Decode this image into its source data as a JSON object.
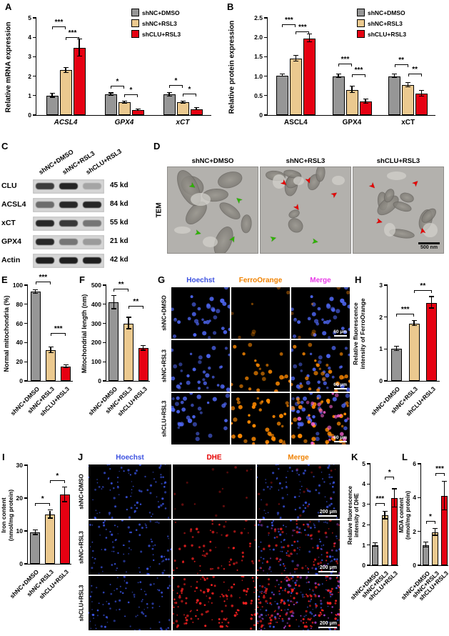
{
  "labels": {
    "A": "A",
    "B": "B",
    "C": "C",
    "D": "D",
    "E": "E",
    "F": "F",
    "G": "G",
    "H": "H",
    "I": "I",
    "J": "J",
    "K": "K",
    "L": "L"
  },
  "figure": {
    "groups": [
      "shNC+DMSO",
      "shNC+RSL3",
      "shCLU+RSL3"
    ],
    "group_colors": [
      "#969696",
      "#ebc98f",
      "#e60012"
    ]
  },
  "chart_data": [
    {
      "panel": "A",
      "type": "bar",
      "ylabel": "Relative mRNA expression",
      "ymax": 5,
      "yticks": [
        0,
        1,
        2,
        3,
        4,
        5
      ],
      "categories": [
        "ACSL4",
        "GPX4",
        "xCT"
      ],
      "italic_x": true,
      "legend": true,
      "series": [
        {
          "name": "shNC+DMSO",
          "values": [
            1.0,
            1.05,
            1.05
          ],
          "errors": [
            0.1,
            0.07,
            0.1
          ]
        },
        {
          "name": "shNC+RSL3",
          "values": [
            2.3,
            0.65,
            0.65
          ],
          "errors": [
            0.12,
            0.05,
            0.05
          ]
        },
        {
          "name": "shCLU+RSL3",
          "values": [
            3.45,
            0.25,
            0.3
          ],
          "errors": [
            0.45,
            0.04,
            0.05
          ]
        }
      ],
      "brackets": [
        {
          "cat": 0,
          "a": 0,
          "b": 1,
          "label": "***",
          "y": 4.55
        },
        {
          "cat": 0,
          "a": 1,
          "b": 2,
          "label": "***",
          "y": 4.0
        },
        {
          "cat": 1,
          "a": 0,
          "b": 1,
          "label": "*",
          "y": 1.5
        },
        {
          "cat": 1,
          "a": 1,
          "b": 2,
          "label": "*",
          "y": 1.05
        },
        {
          "cat": 2,
          "a": 0,
          "b": 1,
          "label": "*",
          "y": 1.55
        },
        {
          "cat": 2,
          "a": 1,
          "b": 2,
          "label": "*",
          "y": 1.1
        }
      ]
    },
    {
      "panel": "B",
      "type": "bar",
      "ylabel": "Relative protein expression",
      "ymax": 2.5,
      "yticks": [
        0,
        0.5,
        1.0,
        1.5,
        2.0,
        2.5
      ],
      "ytick_labels": [
        "0",
        "0.5",
        "1.0",
        "1.5",
        "2.0",
        "2.5"
      ],
      "categories": [
        "ASCL4",
        "GPX4",
        "xCT"
      ],
      "italic_x": false,
      "legend": true,
      "series": [
        {
          "name": "shNC+DMSO",
          "values": [
            1.02,
            1.0,
            1.0
          ],
          "errors": [
            0.03,
            0.04,
            0.05
          ]
        },
        {
          "name": "shNC+RSL3",
          "values": [
            1.45,
            0.65,
            0.77
          ],
          "errors": [
            0.08,
            0.08,
            0.06
          ]
        },
        {
          "name": "shCLU+RSL3",
          "values": [
            1.97,
            0.35,
            0.55
          ],
          "errors": [
            0.1,
            0.05,
            0.08
          ]
        }
      ],
      "brackets": [
        {
          "cat": 0,
          "a": 0,
          "b": 1,
          "label": "***",
          "y": 2.33
        },
        {
          "cat": 0,
          "a": 1,
          "b": 2,
          "label": "***",
          "y": 2.15
        },
        {
          "cat": 1,
          "a": 0,
          "b": 1,
          "label": "***",
          "y": 1.32
        },
        {
          "cat": 1,
          "a": 1,
          "b": 2,
          "label": "***",
          "y": 1.05
        },
        {
          "cat": 2,
          "a": 0,
          "b": 1,
          "label": "**",
          "y": 1.3
        },
        {
          "cat": 2,
          "a": 1,
          "b": 2,
          "label": "**",
          "y": 1.07
        }
      ]
    },
    {
      "panel": "E",
      "type": "bar",
      "ylabel": "Normal mitochondria (%)",
      "ymax": 100,
      "yticks": [
        0,
        20,
        40,
        60,
        80,
        100
      ],
      "rotate_x": true,
      "categories": [
        "shNC+DMSO",
        "shNC+RSL3",
        "shCLU+RSL3"
      ],
      "values": [
        93,
        32,
        15
      ],
      "errors": [
        2,
        3,
        1.5
      ],
      "brackets": [
        {
          "a": 0,
          "b": 1,
          "label": "***",
          "y": 104
        },
        {
          "a": 1,
          "b": 2,
          "label": "***",
          "y": 50
        }
      ]
    },
    {
      "panel": "F",
      "type": "bar",
      "ylabel": "Mitochondrial length (nm)",
      "ymax": 500,
      "yticks": [
        0,
        100,
        200,
        300,
        400,
        500
      ],
      "rotate_x": true,
      "categories": [
        "shNC+DMSO",
        "shNC+RSL3",
        "shCLU+RSL3"
      ],
      "values": [
        410,
        300,
        170
      ],
      "errors": [
        35,
        30,
        12
      ],
      "brackets": [
        {
          "a": 0,
          "b": 1,
          "label": "**",
          "y": 483
        },
        {
          "a": 1,
          "b": 2,
          "label": "**",
          "y": 390
        }
      ]
    },
    {
      "panel": "H",
      "type": "bar",
      "ylabel": "Relative fluorescence\nintensity of FerroOrange",
      "ymax": 3,
      "yticks": [
        0,
        1,
        2,
        3
      ],
      "rotate_x": true,
      "categories": [
        "shNC+DMSO",
        "shNC+RSL3",
        "shCLU+RSL3"
      ],
      "values": [
        1.0,
        1.8,
        2.45
      ],
      "errors": [
        0.07,
        0.08,
        0.18
      ],
      "brackets": [
        {
          "a": 0,
          "b": 1,
          "label": "***",
          "y": 2.1
        },
        {
          "a": 1,
          "b": 2,
          "label": "**",
          "y": 2.85
        }
      ]
    },
    {
      "panel": "I",
      "type": "bar",
      "ylabel": "Iron content\n(nmol/mg protein)",
      "ymax": 30,
      "yticks": [
        0,
        10,
        20,
        30
      ],
      "rotate_x": true,
      "categories": [
        "shNC+DMSO",
        "shNC+RSL3",
        "shCLU+RSL3"
      ],
      "values": [
        9.5,
        15,
        21
      ],
      "errors": [
        0.7,
        1.2,
        2.2
      ],
      "brackets": [
        {
          "a": 0,
          "b": 1,
          "label": "*",
          "y": 18.5
        },
        {
          "a": 1,
          "b": 2,
          "label": "*",
          "y": 25.5
        }
      ]
    },
    {
      "panel": "K",
      "type": "bar",
      "ylabel": "Relative fluorescence\nintensity of DHE",
      "ymax": 5,
      "yticks": [
        0,
        1,
        2,
        3,
        4,
        5
      ],
      "rotate_x": true,
      "categories": [
        "shNC+DMSO",
        "shNC+RSL3",
        "shCLU+RSL3"
      ],
      "values": [
        1.0,
        2.45,
        3.3
      ],
      "errors": [
        0.1,
        0.18,
        0.45
      ],
      "brackets": [
        {
          "a": 0,
          "b": 1,
          "label": "***",
          "y": 3.05
        },
        {
          "a": 1,
          "b": 2,
          "label": "*",
          "y": 4.35
        }
      ]
    },
    {
      "panel": "L",
      "type": "bar",
      "ylabel": "MDA content\n(nmol/mg protein)",
      "ymax": 6,
      "yticks": [
        0,
        2,
        4,
        6
      ],
      "rotate_x": true,
      "categories": [
        "shNC+DMSO",
        "shNC+RSL3",
        "shCLU+RSL3"
      ],
      "values": [
        1.2,
        1.95,
        4.1
      ],
      "errors": [
        0.15,
        0.2,
        0.85
      ],
      "brackets": [
        {
          "a": 0,
          "b": 1,
          "label": "*",
          "y": 2.6
        },
        {
          "a": 1,
          "b": 2,
          "label": "***",
          "y": 5.45
        }
      ]
    }
  ],
  "western_blot": {
    "panel": "C",
    "lanes": [
      "shNC+DMSO",
      "shNC+RSL3",
      "shCLU+RSL3"
    ],
    "rows": [
      {
        "protein": "CLU",
        "size": "45 kd",
        "band_intensity": [
          0.8,
          0.92,
          0.25
        ]
      },
      {
        "protein": "ACSL4",
        "size": "84 kd",
        "band_intensity": [
          0.55,
          0.9,
          0.92
        ]
      },
      {
        "protein": "xCT",
        "size": "55 kd",
        "band_intensity": [
          0.9,
          0.82,
          0.5
        ]
      },
      {
        "protein": "GPX4",
        "size": "21 kd",
        "band_intensity": [
          0.9,
          0.5,
          0.3
        ]
      },
      {
        "protein": "Actin",
        "size": "42 kd",
        "band_intensity": [
          0.95,
          0.95,
          0.95
        ]
      }
    ]
  },
  "tem": {
    "panel": "D",
    "label": "TEM",
    "scale_bar": "500 nm",
    "arrow_colors": {
      "green": "#2db200",
      "red": "#e60000"
    },
    "images": [
      {
        "title": "shNC+DMSO",
        "green_arrows": 4,
        "red_arrows": 0
      },
      {
        "title": "shNC+RSL3",
        "green_arrows": 2,
        "red_arrows": 4
      },
      {
        "title": "shCLU+RSL3",
        "green_arrows": 0,
        "red_arrows": 4
      }
    ]
  },
  "microscopy": [
    {
      "panel": "G",
      "columns": [
        {
          "label": "Hoechst",
          "color": "#3b50e0"
        },
        {
          "label": "FerroOrange",
          "color": "#f08200"
        },
        {
          "label": "Merge",
          "color": "#e83ce8"
        }
      ],
      "rows": [
        "shNC+DMSO",
        "shNC+RSL3",
        "shCLU+RSL3"
      ],
      "scale_bar": "60 μm",
      "signal_intensity": [
        0.25,
        0.6,
        1.0
      ]
    },
    {
      "panel": "J",
      "columns": [
        {
          "label": "Hoechst",
          "color": "#3b50e0"
        },
        {
          "label": "DHE",
          "color": "#e60000"
        },
        {
          "label": "Merge",
          "color": "#f08200"
        }
      ],
      "rows": [
        "shNC+DMSO",
        "shNC+RSL3",
        "shCLU+RSL3"
      ],
      "scale_bar": "200 μm",
      "signal_intensity": [
        0.15,
        0.55,
        1.0
      ]
    }
  ]
}
